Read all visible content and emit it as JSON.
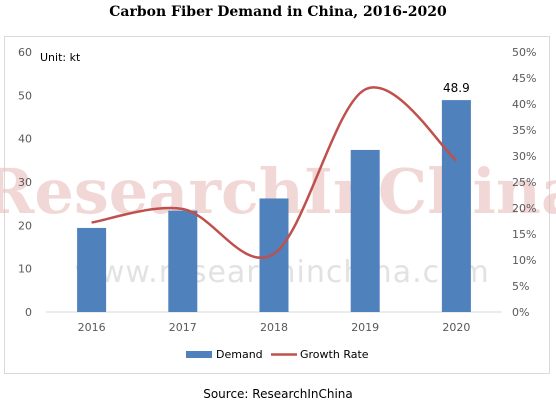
{
  "title": "Carbon Fiber Demand in China, 2016-2020",
  "source": "Source: ResearchInChina",
  "watermark": {
    "line1": "ResearchInChina",
    "line2": "www.researchinchina.com"
  },
  "colors": {
    "bar": "#4f81bd",
    "line": "#c0504d"
  },
  "chart_data": {
    "type": "bar",
    "title": "Carbon Fiber Demand in China, 2016-2020",
    "unit_label": "Unit: kt",
    "categories": [
      "2016",
      "2017",
      "2018",
      "2019",
      "2020"
    ],
    "series": [
      {
        "name": "Demand",
        "type": "bar",
        "axis": "left",
        "values": [
          19.4,
          23.4,
          26.2,
          37.4,
          48.9
        ]
      },
      {
        "name": "Growth Rate",
        "type": "line",
        "axis": "right",
        "values": [
          17.2,
          19.8,
          11.2,
          42.8,
          29.1
        ]
      }
    ],
    "data_labels": [
      {
        "category": "2020",
        "series": "Demand",
        "text": "48.9"
      }
    ],
    "y_left": {
      "min": 0,
      "max": 60,
      "step": 10,
      "ticks": [
        "0",
        "10",
        "20",
        "30",
        "40",
        "50",
        "60"
      ]
    },
    "y_right": {
      "min": 0,
      "max": 50,
      "step": 5,
      "ticks": [
        "0%",
        "5%",
        "10%",
        "15%",
        "20%",
        "25%",
        "30%",
        "35%",
        "40%",
        "45%",
        "50%"
      ]
    },
    "grid": false,
    "legend": "bottom"
  }
}
